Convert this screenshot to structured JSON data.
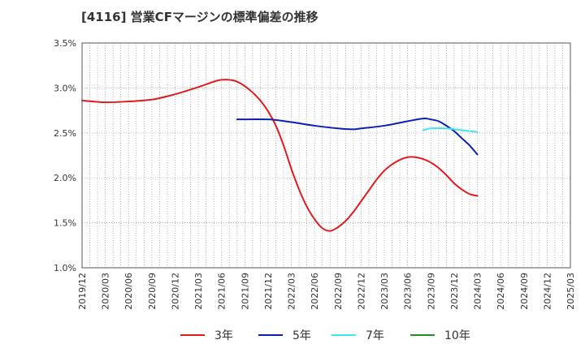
{
  "chart_data": {
    "type": "line",
    "title": "[4116]  営業CFマージンの標準偏差の推移",
    "xlabel": "",
    "ylabel": "",
    "ylim": [
      1.0,
      3.5
    ],
    "y_ticks": [
      "1.0%",
      "1.5%",
      "2.0%",
      "2.5%",
      "3.0%",
      "3.5%"
    ],
    "y_tick_values": [
      1.0,
      1.5,
      2.0,
      2.5,
      3.0,
      3.5
    ],
    "x_ticks": [
      "2019/12",
      "2020/03",
      "2020/06",
      "2020/09",
      "2020/12",
      "2021/03",
      "2021/06",
      "2021/09",
      "2021/12",
      "2022/03",
      "2022/06",
      "2022/09",
      "2022/12",
      "2023/03",
      "2023/06",
      "2023/09",
      "2023/12",
      "2024/03",
      "2024/06",
      "2024/09",
      "2024/12",
      "2025/03"
    ],
    "grid": true,
    "legend_position": "bottom",
    "series": [
      {
        "name": "3年",
        "color": "#e31a1c",
        "points": [
          [
            "2019/12",
            2.86
          ],
          [
            "2020/03",
            2.84
          ],
          [
            "2020/06",
            2.85
          ],
          [
            "2020/09",
            2.87
          ],
          [
            "2020/12",
            2.93
          ],
          [
            "2021/03",
            3.01
          ],
          [
            "2021/05",
            3.07
          ],
          [
            "2021/06",
            3.09
          ],
          [
            "2021/07",
            3.09
          ],
          [
            "2021/08",
            3.07
          ],
          [
            "2021/09",
            3.02
          ],
          [
            "2021/10",
            2.95
          ],
          [
            "2021/11",
            2.86
          ],
          [
            "2021/12",
            2.74
          ],
          [
            "2022/01",
            2.58
          ],
          [
            "2022/02",
            2.36
          ],
          [
            "2022/03",
            2.1
          ],
          [
            "2022/04",
            1.87
          ],
          [
            "2022/05",
            1.68
          ],
          [
            "2022/06",
            1.54
          ],
          [
            "2022/07",
            1.44
          ],
          [
            "2022/08",
            1.41
          ],
          [
            "2022/09",
            1.45
          ],
          [
            "2022/10",
            1.52
          ],
          [
            "2022/11",
            1.62
          ],
          [
            "2022/12",
            1.74
          ],
          [
            "2023/01",
            1.86
          ],
          [
            "2023/02",
            1.98
          ],
          [
            "2023/03",
            2.08
          ],
          [
            "2023/04",
            2.15
          ],
          [
            "2023/05",
            2.2
          ],
          [
            "2023/06",
            2.23
          ],
          [
            "2023/07",
            2.23
          ],
          [
            "2023/08",
            2.21
          ],
          [
            "2023/09",
            2.17
          ],
          [
            "2023/10",
            2.11
          ],
          [
            "2023/11",
            2.03
          ],
          [
            "2023/12",
            1.94
          ],
          [
            "2024/01",
            1.87
          ],
          [
            "2024/02",
            1.82
          ],
          [
            "2024/03",
            1.8
          ]
        ]
      },
      {
        "name": "5年",
        "color": "#0b1fb6",
        "points": [
          [
            "2021/08",
            2.65
          ],
          [
            "2021/12",
            2.65
          ],
          [
            "2022/03",
            2.62
          ],
          [
            "2022/06",
            2.58
          ],
          [
            "2022/09",
            2.55
          ],
          [
            "2022/11",
            2.54
          ],
          [
            "2022/12",
            2.55
          ],
          [
            "2023/03",
            2.58
          ],
          [
            "2023/06",
            2.63
          ],
          [
            "2023/08",
            2.66
          ],
          [
            "2023/09",
            2.65
          ],
          [
            "2023/10",
            2.63
          ],
          [
            "2023/11",
            2.58
          ],
          [
            "2023/12",
            2.52
          ],
          [
            "2024/01",
            2.44
          ],
          [
            "2024/02",
            2.36
          ],
          [
            "2024/03",
            2.26
          ]
        ]
      },
      {
        "name": "7年",
        "color": "#3ee5f2",
        "points": [
          [
            "2023/08",
            2.53
          ],
          [
            "2023/09",
            2.55
          ],
          [
            "2023/11",
            2.55
          ],
          [
            "2024/01",
            2.53
          ],
          [
            "2024/03",
            2.51
          ]
        ]
      },
      {
        "name": "10年",
        "color": "#228b22",
        "points": []
      }
    ]
  }
}
